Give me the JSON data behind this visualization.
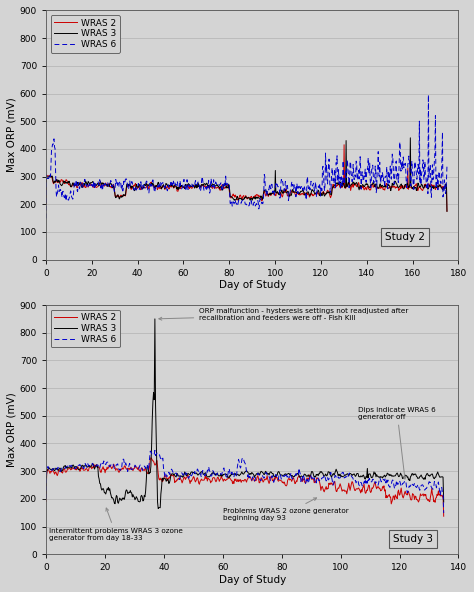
{
  "study2": {
    "title": "Study 2",
    "xlabel": "Day of Study",
    "ylabel": "Max ORP (mV)",
    "xlim": [
      0,
      180
    ],
    "ylim": [
      0,
      900
    ],
    "yticks": [
      0,
      100,
      200,
      300,
      400,
      500,
      600,
      700,
      800,
      900
    ],
    "xticks": [
      0,
      20,
      40,
      60,
      80,
      100,
      120,
      140,
      160,
      180
    ],
    "wras2_color": "#cc0000",
    "wras3_color": "#000000",
    "wras6_color": "#0000cc",
    "bg_color": "#e8e8e8"
  },
  "study3": {
    "title": "Study 3",
    "xlabel": "Day of Study",
    "ylabel": "Max ORP (mV)",
    "xlim": [
      0,
      140
    ],
    "ylim": [
      0,
      900
    ],
    "yticks": [
      0,
      100,
      200,
      300,
      400,
      500,
      600,
      700,
      800,
      900
    ],
    "xticks": [
      0,
      20,
      40,
      60,
      80,
      100,
      120,
      140
    ],
    "wras2_color": "#cc0000",
    "wras3_color": "#000000",
    "wras6_color": "#0000cc",
    "bg_color": "#e8e8e8"
  },
  "fig_bg": "#d4d4d4"
}
